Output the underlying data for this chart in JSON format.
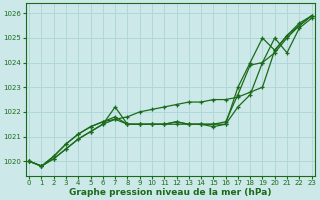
{
  "x": [
    0,
    1,
    2,
    3,
    4,
    5,
    6,
    7,
    8,
    9,
    10,
    11,
    12,
    13,
    14,
    15,
    16,
    17,
    18,
    19,
    20,
    21,
    22,
    23
  ],
  "line1": [
    1020.0,
    1019.8,
    1020.1,
    1020.5,
    1020.9,
    1021.2,
    1021.5,
    1021.7,
    1021.8,
    1022.0,
    1022.1,
    1022.2,
    1022.3,
    1022.4,
    1022.4,
    1022.5,
    1022.5,
    1022.6,
    1022.8,
    1023.0,
    1024.5,
    1025.1,
    1025.6,
    1025.9
  ],
  "line2": [
    1020.0,
    1019.8,
    1020.1,
    1020.5,
    1020.9,
    1021.2,
    1021.5,
    1022.2,
    1021.5,
    1021.5,
    1021.5,
    1021.5,
    1021.6,
    1021.5,
    1021.5,
    1021.4,
    1021.5,
    1022.2,
    1022.7,
    1024.0,
    1024.4,
    1025.0,
    1025.5,
    1025.9
  ],
  "line3": [
    1020.0,
    1019.8,
    1020.2,
    1020.7,
    1021.1,
    1021.4,
    1021.6,
    1021.7,
    1021.5,
    1021.5,
    1021.5,
    1021.5,
    1021.6,
    1021.5,
    1021.5,
    1021.5,
    1021.6,
    1022.7,
    1023.9,
    1024.0,
    1025.0,
    1024.4,
    1025.4,
    1025.8
  ],
  "line4": [
    1020.0,
    1019.8,
    1020.2,
    1020.7,
    1021.1,
    1021.4,
    1021.6,
    1021.8,
    1021.5,
    1021.5,
    1021.5,
    1021.5,
    1021.5,
    1021.5,
    1021.5,
    1021.5,
    1021.5,
    1023.0,
    1024.0,
    1025.0,
    1024.5,
    1025.1,
    1025.5,
    1025.9
  ],
  "ylim": [
    1019.4,
    1026.4
  ],
  "yticks": [
    1020,
    1021,
    1022,
    1023,
    1024,
    1025,
    1026
  ],
  "xlim": [
    -0.3,
    23.3
  ],
  "xticks": [
    0,
    1,
    2,
    3,
    4,
    5,
    6,
    7,
    8,
    9,
    10,
    11,
    12,
    13,
    14,
    15,
    16,
    17,
    18,
    19,
    20,
    21,
    22,
    23
  ],
  "xlabel": "Graphe pression niveau de la mer (hPa)",
  "line_color": "#1a6b1a",
  "bg_color": "#cce8e8",
  "grid_color": "#b0d8d8",
  "label_color": "#1a6b1a"
}
